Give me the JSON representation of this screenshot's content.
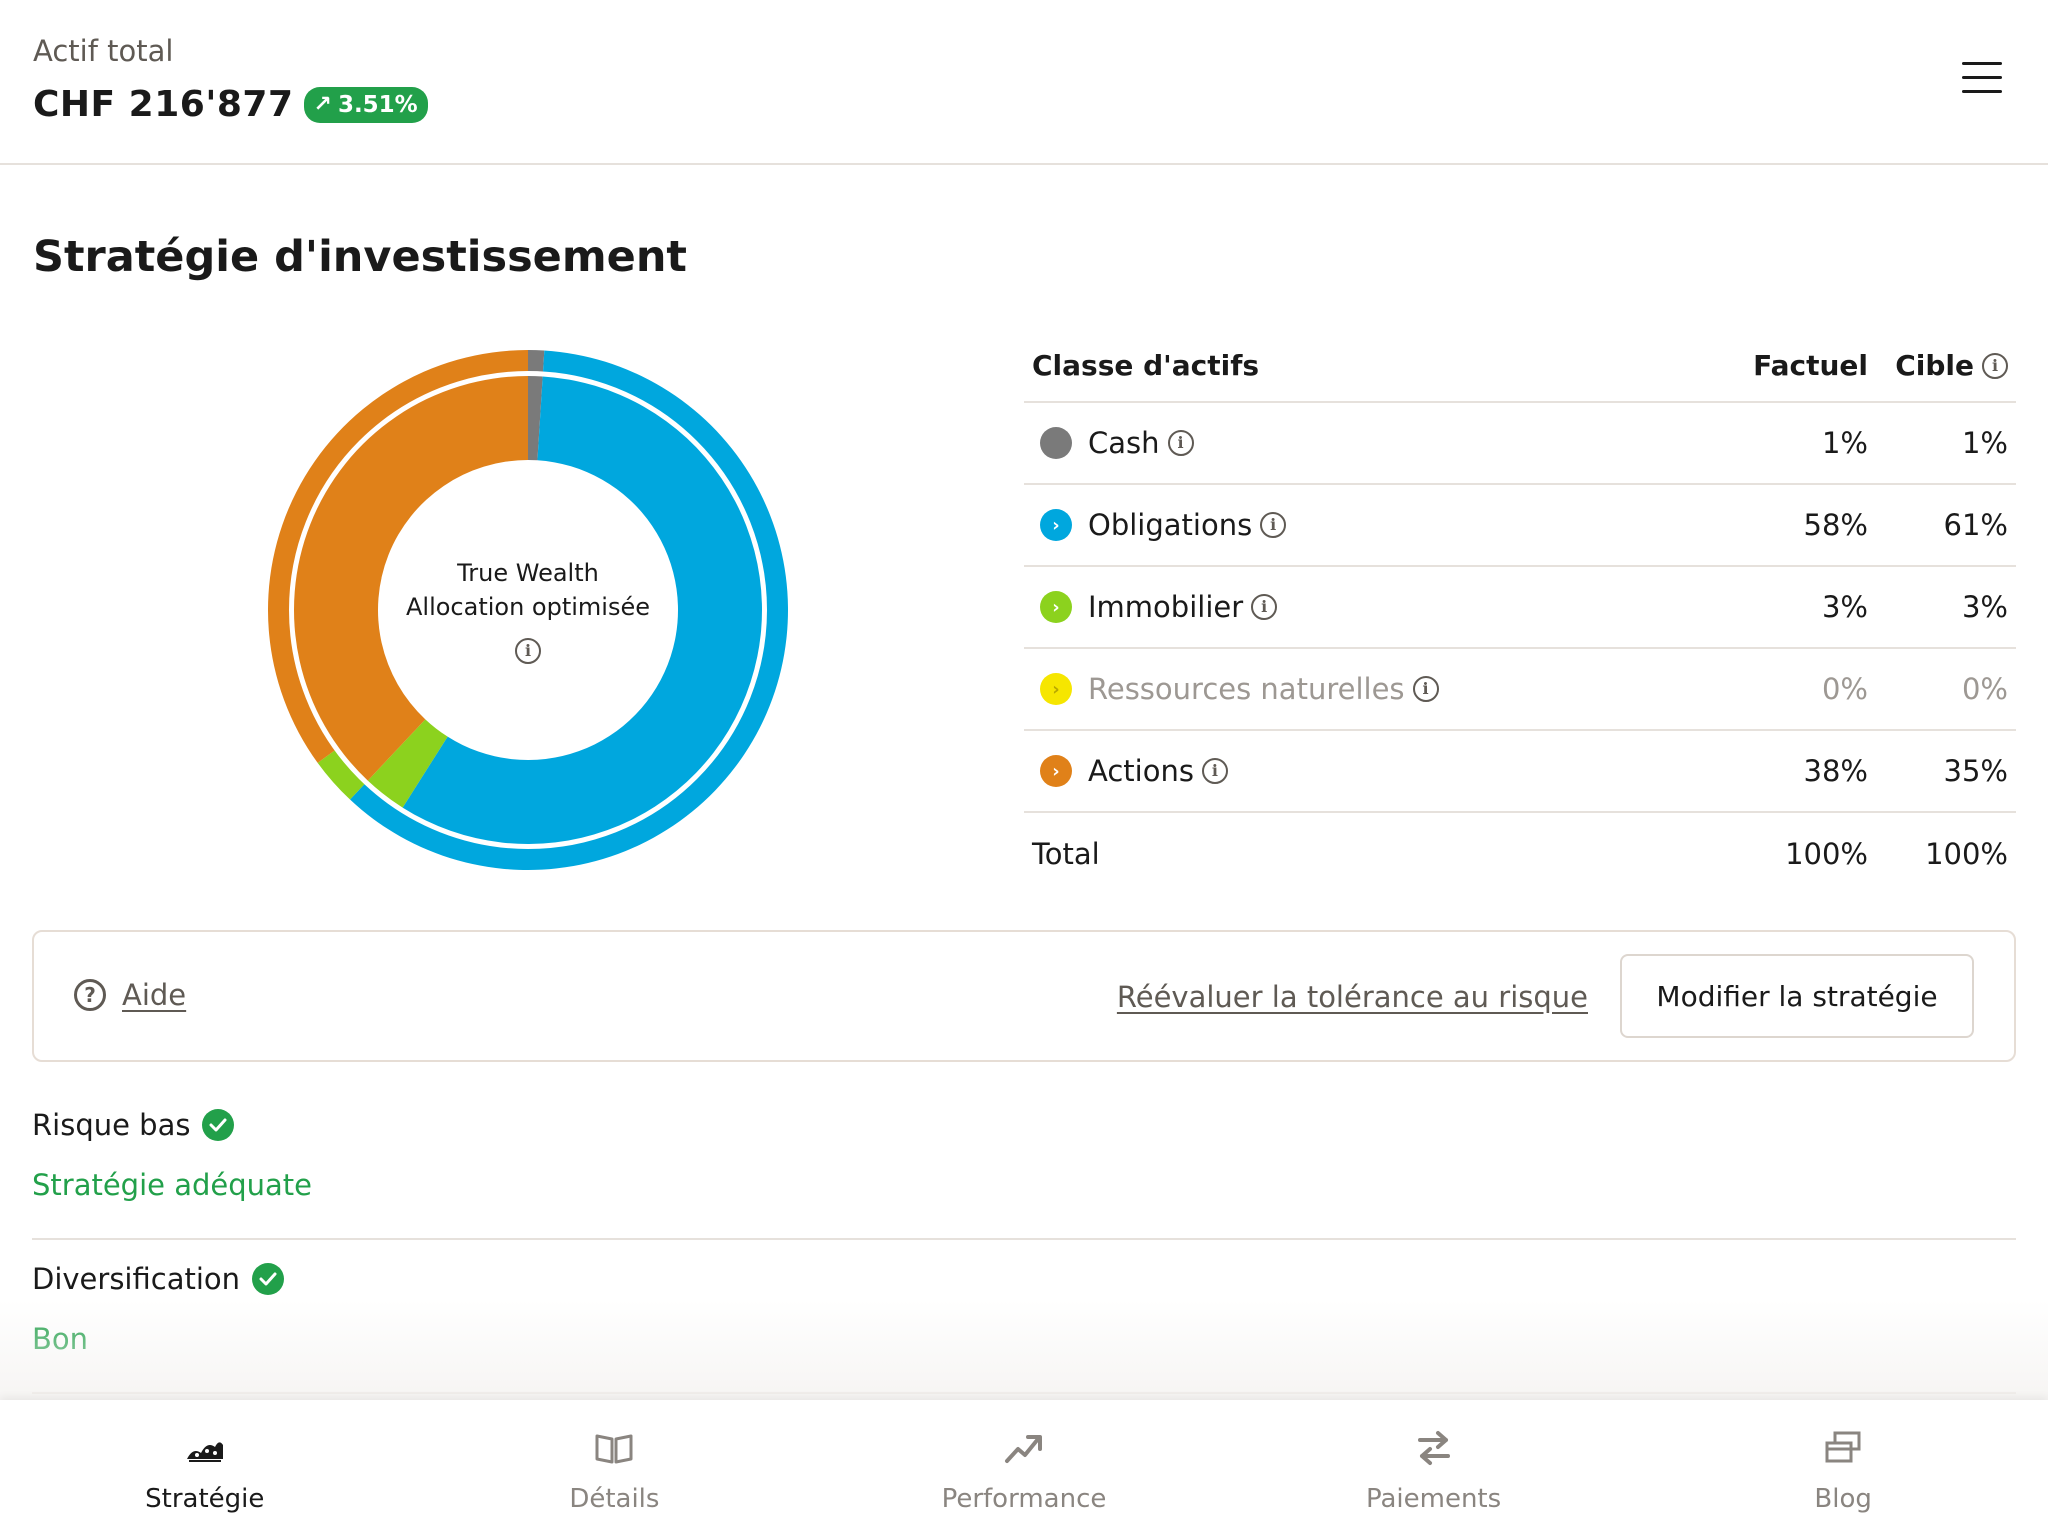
{
  "header": {
    "total_label": "Actif total",
    "total_value": "CHF 216'877",
    "performance": "3.51%",
    "performance_color": "#22a04a"
  },
  "section_title": "Stratégie d'investissement",
  "donut": {
    "center_line1": "True Wealth",
    "center_line2": "Allocation optimisée"
  },
  "table": {
    "header": {
      "name": "Classe d'actifs",
      "factual": "Factuel",
      "target": "Cible"
    },
    "rows": [
      {
        "name": "Cash",
        "factual": "1%",
        "target": "1%",
        "color": "#7a7a7a",
        "icon": "none-dot",
        "muted": false
      },
      {
        "name": "Obligations",
        "factual": "58%",
        "target": "61%",
        "color": "#00a7de",
        "icon": "chevron-right",
        "muted": false
      },
      {
        "name": "Immobilier",
        "factual": "3%",
        "target": "3%",
        "color": "#8cd21e",
        "icon": "chevron-right",
        "muted": false
      },
      {
        "name": "Ressources naturelles",
        "factual": "0%",
        "target": "0%",
        "color": "#f6e600",
        "icon": "chevron-right",
        "muted": true
      },
      {
        "name": "Actions",
        "factual": "38%",
        "target": "35%",
        "color": "#e08119",
        "icon": "chevron-right",
        "muted": false
      }
    ],
    "total": {
      "name": "Total",
      "factual": "100%",
      "target": "100%"
    }
  },
  "actions": {
    "help": "Aide",
    "reassess_risk": "Réévaluer la tolérance au risque",
    "modify_strategy": "Modifier la stratégie"
  },
  "assessments": [
    {
      "title": "Risque bas",
      "status": "Stratégie adéquate",
      "status_color": "#22a04a"
    },
    {
      "title": "Diversification",
      "status": "Bon",
      "status_color": "#22a04a"
    }
  ],
  "nav": [
    {
      "label": "Stratégie",
      "icon": "strategy-icon",
      "active": true
    },
    {
      "label": "Détails",
      "icon": "book-icon",
      "active": false
    },
    {
      "label": "Performance",
      "icon": "trend-up-icon",
      "active": false
    },
    {
      "label": "Paiements",
      "icon": "transfer-icon",
      "active": false
    },
    {
      "label": "Blog",
      "icon": "blog-icon",
      "active": false
    }
  ],
  "chart_data": {
    "type": "pie",
    "title": "",
    "series": [
      {
        "name": "Factuel",
        "values": [
          1,
          58,
          3,
          0,
          38
        ]
      },
      {
        "name": "Cible",
        "values": [
          1,
          61,
          3,
          0,
          35
        ]
      }
    ],
    "categories": [
      "Cash",
      "Obligations",
      "Immobilier",
      "Ressources naturelles",
      "Actions"
    ],
    "colors": [
      "#7a7a7a",
      "#00a7de",
      "#8cd21e",
      "#f6e600",
      "#e08119"
    ]
  }
}
